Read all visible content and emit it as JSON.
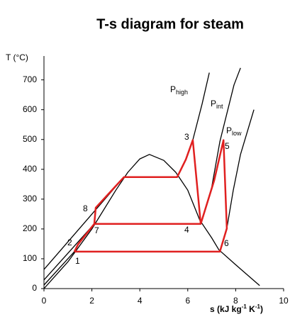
{
  "chart_data": {
    "type": "line",
    "title": "T-s diagram for steam",
    "y_label": "T (°C)",
    "x_label": [
      "s (kJ kg",
      "-1",
      " K",
      "-1",
      ")"
    ],
    "xlim": [
      0,
      10
    ],
    "xticks": [
      0,
      2,
      4,
      6,
      8,
      10
    ],
    "ylim": [
      0,
      780
    ],
    "yticks": [
      0,
      100,
      200,
      300,
      400,
      500,
      600,
      700
    ],
    "series": [
      {
        "color": "#000000",
        "x": [
          0,
          1,
          2,
          3,
          3.5,
          4,
          4.4,
          5,
          5.5,
          6,
          6.5,
          7,
          7.3,
          8,
          9
        ],
        "values": [
          0,
          90,
          200,
          330,
          390,
          435,
          450,
          430,
          390,
          330,
          230,
          170,
          130,
          80,
          10
        ]
      },
      {
        "name": "P",
        "subscript": "high",
        "color": "#000000",
        "x": [
          0,
          3.34,
          5.56,
          5.92,
          6.21,
          6.6,
          6.9
        ],
        "values": [
          64,
          374,
          374,
          433,
          498,
          620,
          724
        ]
      },
      {
        "name": "P",
        "subscript": "int",
        "color": "#000000",
        "x": [
          0,
          2.1,
          6.54,
          7.0,
          7.34,
          7.93,
          8.2
        ],
        "values": [
          29,
          217,
          217,
          340,
          493,
          683,
          740
        ]
      },
      {
        "name": "P",
        "subscript": "low",
        "color": "#000000",
        "x": [
          0,
          1.27,
          7.34,
          7.63,
          7.9,
          8.2,
          8.76
        ],
        "values": [
          12,
          124,
          124,
          202,
          330,
          450,
          600
        ]
      },
      {
        "color": "#e02020",
        "x": [
          1.27,
          1.42,
          2.1,
          2.16,
          3.34,
          5.56,
          5.92,
          6.21,
          6.54,
          7.1,
          7.49,
          7.63,
          7.34,
          1.27,
          null,
          2.1,
          6.54
        ],
        "values": [
          124,
          148,
          217,
          271,
          374,
          374,
          433,
          498,
          217,
          362,
          498,
          202,
          124,
          124,
          null,
          217,
          217
        ]
      }
    ],
    "point_labels": [
      "1",
      "2",
      "3",
      "4",
      "5",
      "6",
      "7",
      "8"
    ]
  }
}
